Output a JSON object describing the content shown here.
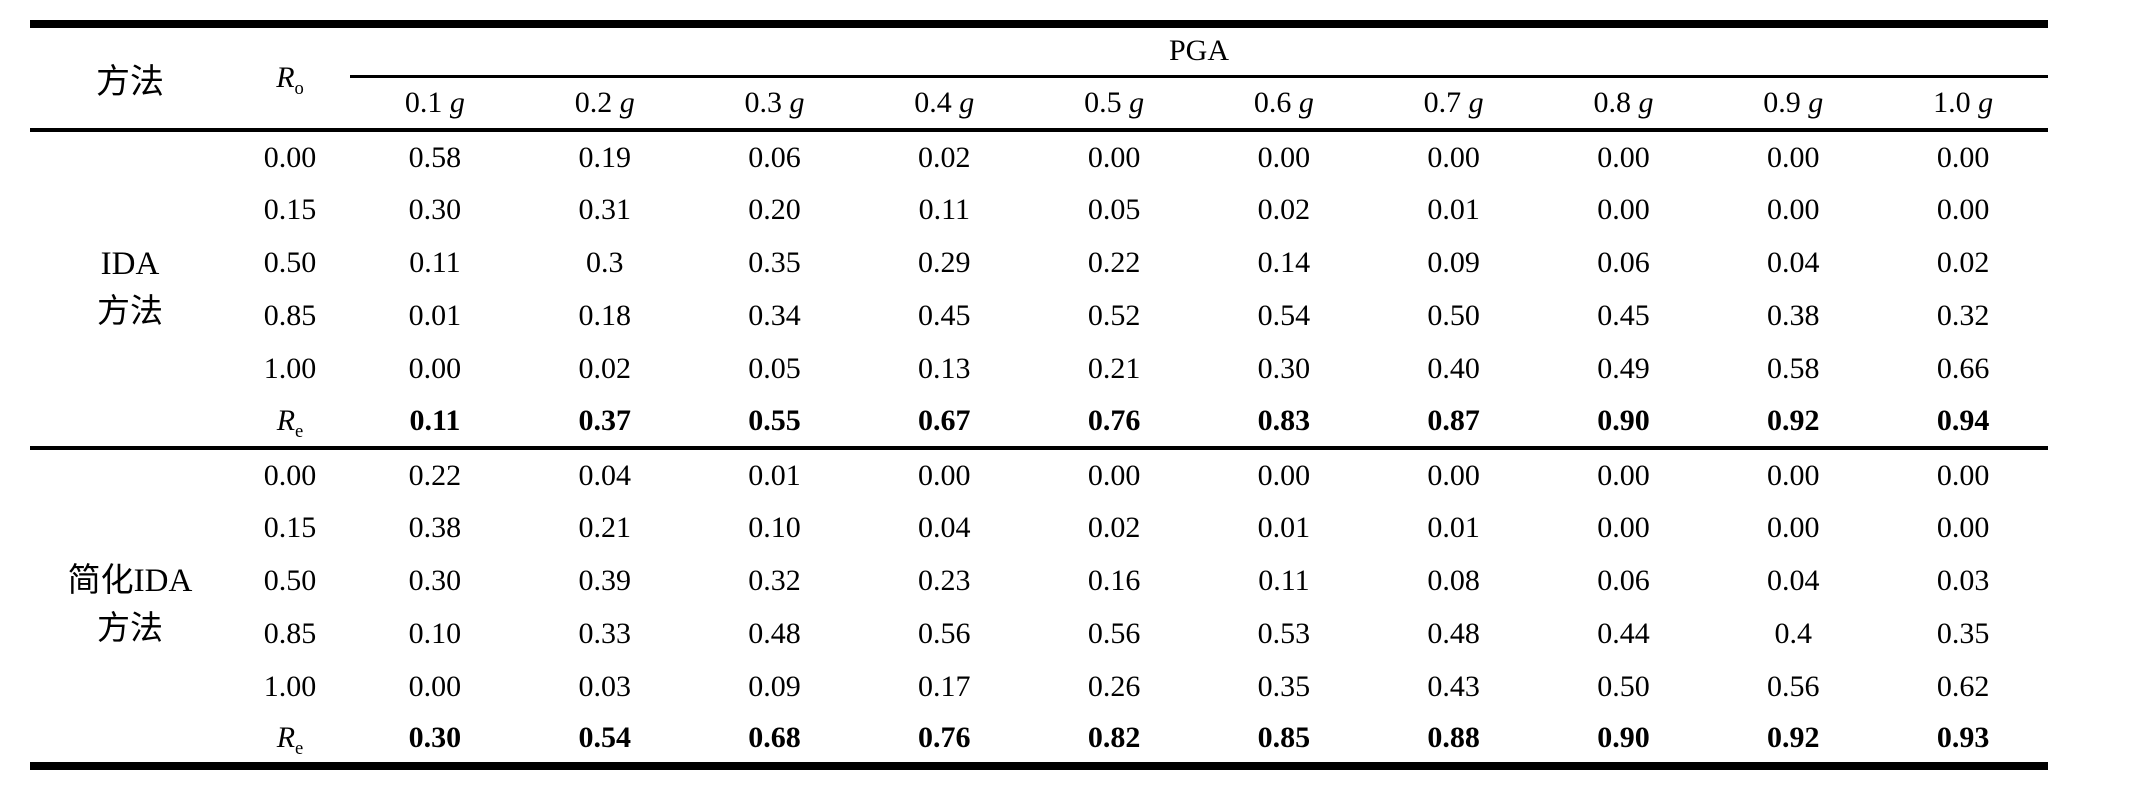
{
  "colors": {
    "background": "#ffffff",
    "text": "#000000",
    "rules": "#000000"
  },
  "table": {
    "header": {
      "method_label": "方法",
      "ro_label": {
        "base": "R",
        "sub": "o"
      },
      "pga_label": "PGA",
      "columns": [
        {
          "value": "0.1",
          "unit": "g"
        },
        {
          "value": "0.2",
          "unit": "g"
        },
        {
          "value": "0.3",
          "unit": "g"
        },
        {
          "value": "0.4",
          "unit": "g"
        },
        {
          "value": "0.5",
          "unit": "g"
        },
        {
          "value": "0.6",
          "unit": "g"
        },
        {
          "value": "0.7",
          "unit": "g"
        },
        {
          "value": "0.8",
          "unit": "g"
        },
        {
          "value": "0.9",
          "unit": "g"
        },
        {
          "value": "1.0",
          "unit": "g"
        }
      ]
    },
    "sections": [
      {
        "method_lines": [
          "IDA",
          "方法"
        ],
        "rows": [
          {
            "label": "0.00",
            "values": [
              "0.58",
              "0.19",
              "0.06",
              "0.02",
              "0.00",
              "0.00",
              "0.00",
              "0.00",
              "0.00",
              "0.00"
            ]
          },
          {
            "label": "0.15",
            "values": [
              "0.30",
              "0.31",
              "0.20",
              "0.11",
              "0.05",
              "0.02",
              "0.01",
              "0.00",
              "0.00",
              "0.00"
            ]
          },
          {
            "label": "0.50",
            "values": [
              "0.11",
              "0.3",
              "0.35",
              "0.29",
              "0.22",
              "0.14",
              "0.09",
              "0.06",
              "0.04",
              "0.02"
            ]
          },
          {
            "label": "0.85",
            "values": [
              "0.01",
              "0.18",
              "0.34",
              "0.45",
              "0.52",
              "0.54",
              "0.50",
              "0.45",
              "0.38",
              "0.32"
            ]
          },
          {
            "label": "1.00",
            "values": [
              "0.00",
              "0.02",
              "0.05",
              "0.13",
              "0.21",
              "0.30",
              "0.40",
              "0.49",
              "0.58",
              "0.66"
            ]
          },
          {
            "label_base": "R",
            "label_sub": "e",
            "bold": true,
            "values": [
              "0.11",
              "0.37",
              "0.55",
              "0.67",
              "0.76",
              "0.83",
              "0.87",
              "0.90",
              "0.92",
              "0.94"
            ]
          }
        ]
      },
      {
        "method_lines": [
          "简化IDA",
          "方法"
        ],
        "rows": [
          {
            "label": "0.00",
            "values": [
              "0.22",
              "0.04",
              "0.01",
              "0.00",
              "0.00",
              "0.00",
              "0.00",
              "0.00",
              "0.00",
              "0.00"
            ]
          },
          {
            "label": "0.15",
            "values": [
              "0.38",
              "0.21",
              "0.10",
              "0.04",
              "0.02",
              "0.01",
              "0.01",
              "0.00",
              "0.00",
              "0.00"
            ]
          },
          {
            "label": "0.50",
            "values": [
              "0.30",
              "0.39",
              "0.32",
              "0.23",
              "0.16",
              "0.11",
              "0.08",
              "0.06",
              "0.04",
              "0.03"
            ]
          },
          {
            "label": "0.85",
            "values": [
              "0.10",
              "0.33",
              "0.48",
              "0.56",
              "0.56",
              "0.53",
              "0.48",
              "0.44",
              "0.4",
              "0.35"
            ]
          },
          {
            "label": "1.00",
            "values": [
              "0.00",
              "0.03",
              "0.09",
              "0.17",
              "0.26",
              "0.35",
              "0.43",
              "0.50",
              "0.56",
              "0.62"
            ]
          },
          {
            "label_base": "R",
            "label_sub": "e",
            "bold": true,
            "values": [
              "0.30",
              "0.54",
              "0.68",
              "0.76",
              "0.82",
              "0.85",
              "0.88",
              "0.90",
              "0.92",
              "0.93"
            ]
          }
        ]
      }
    ]
  }
}
